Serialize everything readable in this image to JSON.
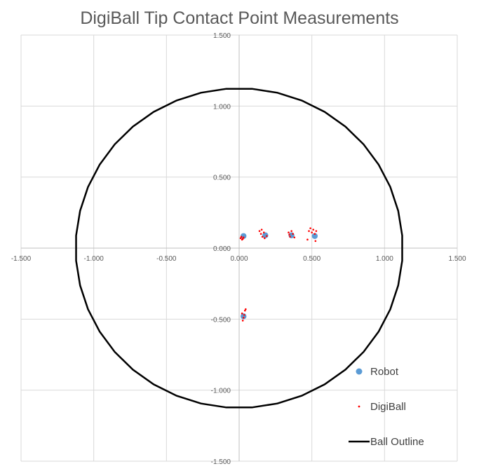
{
  "chart_data": {
    "type": "scatter",
    "title": "DigiBall Tip Contact Point Measurements",
    "xlim": [
      -1.5,
      1.5
    ],
    "ylim": [
      -1.5,
      1.5
    ],
    "x_ticks": [
      "-1.500",
      "-1.000",
      "-0.500",
      "0.000",
      "0.500",
      "1.000",
      "1.500"
    ],
    "y_ticks": [
      "1.500",
      "1.000",
      "0.500",
      "0.000",
      "-0.500",
      "-1.000",
      "-1.500"
    ],
    "grid": true,
    "legend_position": "bottom-right",
    "series": [
      {
        "name": "Robot",
        "marker": "circle",
        "color": "#5b9bd5",
        "points": [
          {
            "x": 0.03,
            "y": 0.085
          },
          {
            "x": 0.18,
            "y": 0.09
          },
          {
            "x": 0.36,
            "y": 0.09
          },
          {
            "x": 0.52,
            "y": 0.085
          },
          {
            "x": 0.03,
            "y": -0.48
          }
        ]
      },
      {
        "name": "DigiBall",
        "marker": "dot",
        "color": "#ff0000",
        "points": [
          {
            "x": 0.01,
            "y": 0.07
          },
          {
            "x": 0.02,
            "y": 0.06
          },
          {
            "x": 0.03,
            "y": 0.075
          },
          {
            "x": 0.015,
            "y": 0.08
          },
          {
            "x": 0.025,
            "y": 0.065
          },
          {
            "x": 0.14,
            "y": 0.12
          },
          {
            "x": 0.15,
            "y": 0.1
          },
          {
            "x": 0.16,
            "y": 0.08
          },
          {
            "x": 0.17,
            "y": 0.11
          },
          {
            "x": 0.19,
            "y": 0.085
          },
          {
            "x": 0.175,
            "y": 0.07
          },
          {
            "x": 0.155,
            "y": 0.13
          },
          {
            "x": 0.34,
            "y": 0.11
          },
          {
            "x": 0.35,
            "y": 0.08
          },
          {
            "x": 0.37,
            "y": 0.1
          },
          {
            "x": 0.36,
            "y": 0.12
          },
          {
            "x": 0.38,
            "y": 0.075
          },
          {
            "x": 0.345,
            "y": 0.095
          },
          {
            "x": 0.48,
            "y": 0.12
          },
          {
            "x": 0.49,
            "y": 0.14
          },
          {
            "x": 0.5,
            "y": 0.11
          },
          {
            "x": 0.51,
            "y": 0.13
          },
          {
            "x": 0.52,
            "y": 0.1
          },
          {
            "x": 0.53,
            "y": 0.12
          },
          {
            "x": 0.47,
            "y": 0.06
          },
          {
            "x": 0.525,
            "y": 0.05
          },
          {
            "x": 0.02,
            "y": -0.46
          },
          {
            "x": 0.03,
            "y": -0.49
          },
          {
            "x": 0.04,
            "y": -0.44
          },
          {
            "x": 0.025,
            "y": -0.51
          },
          {
            "x": 0.035,
            "y": -0.47
          },
          {
            "x": 0.045,
            "y": -0.43
          }
        ]
      },
      {
        "name": "Ball Outline",
        "marker": "line",
        "color": "#000000",
        "radius": 1.125,
        "vertices": 40
      }
    ]
  }
}
